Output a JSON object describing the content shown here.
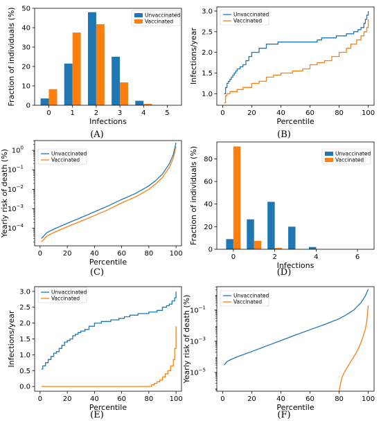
{
  "colors": {
    "unvaccinated": "#1f77b4",
    "vaccinated": "#ff7f0e"
  },
  "panels": [
    {
      "id": "A",
      "caption": "(A)",
      "type": "bar",
      "xlabel": "Infections",
      "ylabel": "Fraction of individuals (%)",
      "xlim": [
        -0.6,
        5.6
      ],
      "ylim": [
        0,
        50
      ],
      "xticks": [
        0,
        1,
        2,
        3,
        4,
        5
      ],
      "xtick_labels": [
        "0",
        "1",
        "2",
        "3",
        "4",
        "5"
      ],
      "yticks": [
        0,
        10,
        20,
        30,
        40,
        50
      ],
      "ytick_labels": [
        "0",
        "10",
        "20",
        "30",
        "40",
        "50"
      ],
      "legend": [
        "Unvaccinated",
        "Vaccinated"
      ],
      "chart_data": {
        "type": "bar",
        "categories": [
          0,
          1,
          2,
          3,
          4,
          5
        ],
        "series": [
          {
            "name": "Unvaccinated",
            "values": [
              3.5,
              21.5,
              48,
              25,
              2.3,
              0
            ]
          },
          {
            "name": "Vaccinated",
            "values": [
              8.3,
              37.5,
              41.8,
              11.8,
              0.7,
              0
            ]
          }
        ]
      }
    },
    {
      "id": "B",
      "caption": "(B)",
      "type": "step",
      "xlabel": "Percentile",
      "ylabel": "Infections/year",
      "xlim": [
        -4,
        104
      ],
      "ylim": [
        0.72,
        3.1
      ],
      "xticks": [
        0,
        20,
        40,
        60,
        80,
        100
      ],
      "xtick_labels": [
        "0",
        "20",
        "40",
        "60",
        "80",
        "100"
      ],
      "yticks": [
        1.0,
        1.5,
        2.0,
        2.5,
        3.0
      ],
      "ytick_labels": [
        "1.0",
        "1.5",
        "2.0",
        "2.5",
        "3.0"
      ],
      "legend": [
        "Unvaccinated",
        "Vaccinated"
      ],
      "chart_data": {
        "type": "line",
        "series": [
          {
            "name": "Unvaccinated",
            "x": [
              1,
              2,
              3,
              4,
              5,
              6,
              7,
              8,
              9,
              10,
              12,
              14,
              16,
              18,
              20,
              25,
              30,
              38,
              65,
              68,
              78,
              85,
              90,
              93,
              95,
              97,
              98,
              99,
              100
            ],
            "y": [
              1.0,
              1.15,
              1.25,
              1.3,
              1.35,
              1.4,
              1.45,
              1.5,
              1.55,
              1.6,
              1.65,
              1.7,
              1.8,
              1.9,
              2.0,
              2.1,
              2.2,
              2.25,
              2.3,
              2.35,
              2.4,
              2.45,
              2.5,
              2.55,
              2.6,
              2.7,
              2.8,
              2.9,
              3.0
            ]
          },
          {
            "name": "Vaccinated",
            "x": [
              1,
              2,
              3,
              5,
              10,
              14,
              20,
              25,
              30,
              35,
              40,
              48,
              55,
              60,
              65,
              70,
              75,
              80,
              85,
              88,
              92,
              95,
              97,
              99,
              100
            ],
            "y": [
              0.78,
              0.95,
              1.0,
              1.05,
              1.1,
              1.15,
              1.25,
              1.3,
              1.4,
              1.45,
              1.5,
              1.55,
              1.6,
              1.7,
              1.75,
              1.8,
              1.9,
              2.0,
              2.1,
              2.2,
              2.3,
              2.4,
              2.5,
              2.6,
              2.8
            ]
          }
        ]
      }
    },
    {
      "id": "C",
      "caption": "(C)",
      "type": "log",
      "xlabel": "Percentile",
      "ylabel": "Yearly risk of death (%)",
      "xlim": [
        -4,
        104
      ],
      "ylog": [
        -4.9,
        0.5
      ],
      "xticks": [
        0,
        20,
        40,
        60,
        80,
        100
      ],
      "xtick_labels": [
        "0",
        "20",
        "40",
        "60",
        "80",
        "100"
      ],
      "yticks": [
        -4,
        -3,
        -2,
        -1,
        0
      ],
      "ytick_labels": [
        "10",
        "10",
        "10",
        "10",
        "10"
      ],
      "ytick_exps": [
        "−4",
        "−3",
        "−2",
        "−1",
        "0"
      ],
      "legend": [
        "Unvaccinated",
        "Vaccinated"
      ],
      "chart_data": {
        "type": "line",
        "yscale": "log",
        "series": [
          {
            "name": "Unvaccinated",
            "x": [
              1,
              5,
              10,
              20,
              30,
              40,
              50,
              60,
              70,
              80,
              85,
              90,
              95,
              98,
              100
            ],
            "y": [
              3e-05,
              6e-05,
              9e-05,
              0.00018,
              0.00035,
              0.0007,
              0.0014,
              0.003,
              0.006,
              0.015,
              0.028,
              0.06,
              0.2,
              0.6,
              2.5
            ]
          },
          {
            "name": "Vaccinated",
            "x": [
              1,
              5,
              10,
              20,
              30,
              40,
              50,
              60,
              70,
              80,
              85,
              90,
              95,
              98,
              100
            ],
            "y": [
              2e-05,
              4e-05,
              6e-05,
              0.00012,
              0.00023,
              0.00045,
              0.0009,
              0.002,
              0.004,
              0.01,
              0.019,
              0.04,
              0.13,
              0.4,
              1.6
            ]
          }
        ]
      }
    },
    {
      "id": "D",
      "caption": "(D)",
      "type": "bar",
      "xlabel": "Infections",
      "ylabel": "Fraction of individuals (%)",
      "xlim": [
        -0.8,
        6.8
      ],
      "ylim": [
        0,
        95
      ],
      "xticks": [
        0,
        2,
        4,
        6
      ],
      "xtick_labels": [
        "0",
        "2",
        "4",
        "6"
      ],
      "yticks": [
        0,
        20,
        40,
        60,
        80
      ],
      "ytick_labels": [
        "0",
        "20",
        "40",
        "60",
        "80"
      ],
      "legend": [
        "Unvaccinated",
        "Vaccinated"
      ],
      "chart_data": {
        "type": "bar",
        "categories": [
          0,
          1,
          2,
          3,
          4,
          5,
          6
        ],
        "series": [
          {
            "name": "Unvaccinated",
            "values": [
              9,
              26.5,
              42,
              20,
              2,
              0,
              0
            ]
          },
          {
            "name": "Vaccinated",
            "values": [
              91,
              7.5,
              1.2,
              0,
              0,
              0,
              0
            ]
          }
        ]
      }
    },
    {
      "id": "E",
      "caption": "(E)",
      "type": "step",
      "xlabel": "Percentile",
      "ylabel": "Infections/year",
      "xlim": [
        -4,
        104
      ],
      "ylim": [
        -0.15,
        3.15
      ],
      "xticks": [
        0,
        20,
        40,
        60,
        80,
        100
      ],
      "xtick_labels": [
        "0",
        "20",
        "40",
        "60",
        "80",
        "100"
      ],
      "yticks": [
        0,
        0.5,
        1.0,
        1.5,
        2.0,
        2.5,
        3.0
      ],
      "ytick_labels": [
        "0.0",
        "0.5",
        "1.0",
        "1.5",
        "2.0",
        "2.5",
        "3.0"
      ],
      "legend": [
        "Unvaccinated",
        "Vaccinated"
      ],
      "chart_data": {
        "type": "line",
        "series": [
          {
            "name": "Unvaccinated",
            "x": [
              1,
              2,
              4,
              6,
              8,
              10,
              12,
              14,
              16,
              18,
              20,
              22,
              24,
              26,
              28,
              30,
              33,
              36,
              40,
              45,
              52,
              58,
              62,
              66,
              72,
              80,
              86,
              90,
              93,
              95,
              97,
              99,
              100
            ],
            "y": [
              0.55,
              0.65,
              0.75,
              0.85,
              0.95,
              1.05,
              1.1,
              1.2,
              1.3,
              1.4,
              1.45,
              1.5,
              1.6,
              1.65,
              1.7,
              1.75,
              1.8,
              1.9,
              2.0,
              2.05,
              2.1,
              2.15,
              2.2,
              2.25,
              2.3,
              2.35,
              2.4,
              2.5,
              2.55,
              2.6,
              2.7,
              2.8,
              3.0
            ]
          },
          {
            "name": "Vaccinated",
            "x": [
              1,
              80,
              82,
              84,
              86,
              88,
              90,
              92,
              94,
              96,
              98,
              99,
              100
            ],
            "y": [
              0,
              0,
              0.05,
              0.1,
              0.15,
              0.2,
              0.3,
              0.4,
              0.5,
              0.65,
              0.85,
              1.2,
              1.9
            ]
          }
        ]
      }
    },
    {
      "id": "F",
      "caption": "(F)",
      "type": "log",
      "xlabel": "Percentile",
      "ylabel": "Yearly risk of death (%)",
      "xlim": [
        -4,
        104
      ],
      "ylog": [
        -6.2,
        0.5
      ],
      "xticks": [
        0,
        20,
        40,
        60,
        80,
        100
      ],
      "xtick_labels": [
        "0",
        "20",
        "40",
        "60",
        "80",
        "100"
      ],
      "yticks": [
        -5,
        -3,
        -1
      ],
      "ytick_labels": [
        "10",
        "10",
        "10"
      ],
      "ytick_exps": [
        "−5",
        "−3",
        "−1"
      ],
      "legend": [
        "Unvaccinated",
        "Vaccinated"
      ],
      "chart_data": {
        "type": "line",
        "yscale": "log",
        "series": [
          {
            "name": "Unvaccinated",
            "x": [
              1,
              3,
              6,
              10,
              20,
              30,
              40,
              50,
              60,
              70,
              80,
              85,
              90,
              95,
              98,
              100
            ],
            "y": [
              3e-05,
              5e-05,
              7e-05,
              0.0001,
              0.00022,
              0.0005,
              0.0011,
              0.0025,
              0.0055,
              0.012,
              0.028,
              0.05,
              0.1,
              0.3,
              0.8,
              2.2
            ]
          },
          {
            "name": "Vaccinated",
            "x": [
              80,
              81,
              82,
              84,
              86,
              88,
              90,
              92,
              94,
              96,
              98,
              99,
              100
            ],
            "y": [
              6e-07,
              2e-06,
              5e-06,
              1.2e-05,
              2.5e-05,
              5e-05,
              0.0001,
              0.0002,
              0.0005,
              0.0015,
              0.006,
              0.02,
              0.2
            ]
          }
        ]
      }
    }
  ]
}
